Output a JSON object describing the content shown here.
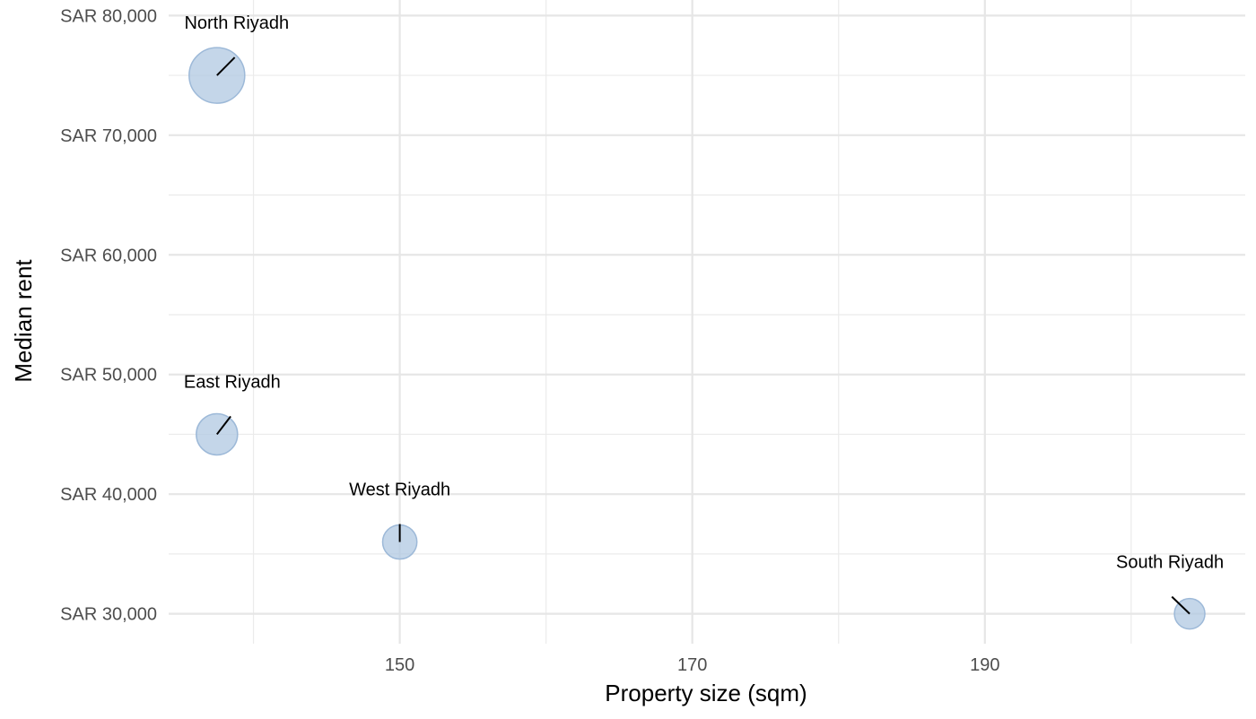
{
  "chart_data": {
    "type": "scatter",
    "title": "",
    "xlabel": "Property size (sqm)",
    "ylabel": "Median rent",
    "x_ticks": [
      150,
      170,
      190
    ],
    "x_tick_labels": [
      "150",
      "170",
      "190"
    ],
    "y_ticks": [
      30000,
      40000,
      50000,
      60000,
      70000,
      80000
    ],
    "y_tick_labels": [
      "SAR 30,000",
      "SAR 40,000",
      "SAR 50,000",
      "SAR 60,000",
      "SAR 70,000",
      "SAR 80,000"
    ],
    "xlim": [
      134.2,
      207.8
    ],
    "ylim": [
      27500,
      81300
    ],
    "grid": true,
    "legend": "none",
    "point_color": "#b0c8e2",
    "point_stroke": "#9db9d8",
    "points": [
      {
        "label": "North Riyadh",
        "x": 137.5,
        "y": 75000,
        "size": 1.0
      },
      {
        "label": "East Riyadh",
        "x": 137.5,
        "y": 45000,
        "size": 0.55
      },
      {
        "label": "West Riyadh",
        "x": 150,
        "y": 36000,
        "size": 0.38
      },
      {
        "label": "South Riyadh",
        "x": 204,
        "y": 30000,
        "size": 0.3
      }
    ]
  }
}
